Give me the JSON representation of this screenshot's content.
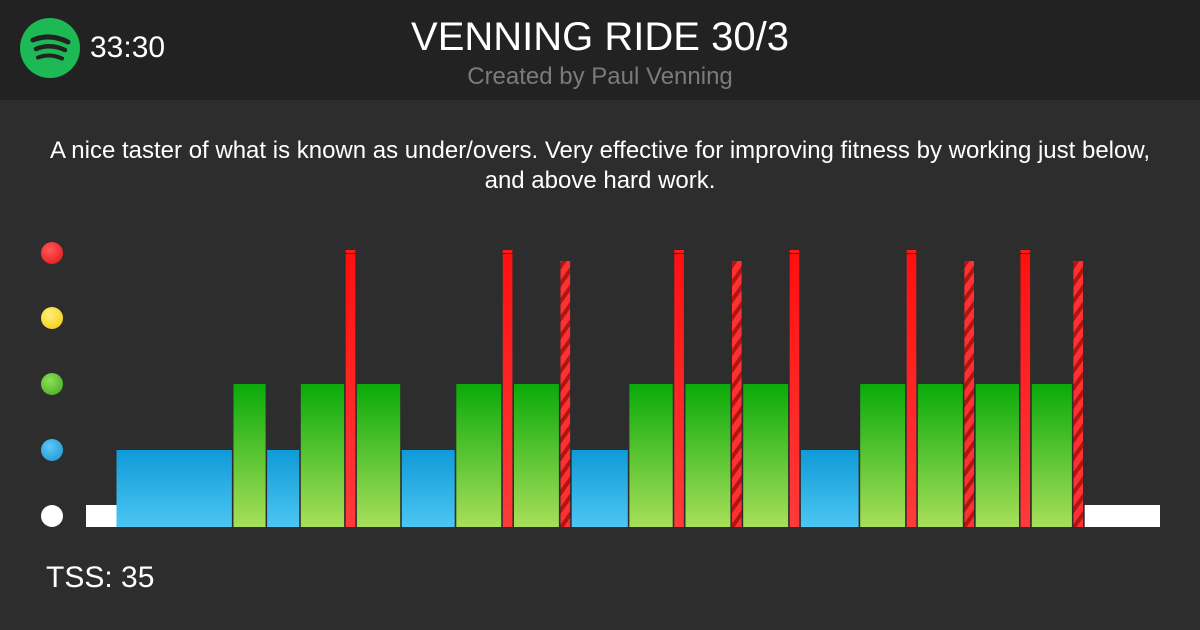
{
  "header": {
    "app_icon": "spotify-icon",
    "duration": "33:30",
    "title": "VENNING RIDE 30/3",
    "subtitle": "Created by Paul Venning"
  },
  "description": "A nice taster of what is known as under/overs. Very effective for improving fitness by working just below, and above hard work.",
  "zones": [
    {
      "name": "zone-5",
      "color": "#ff2a2a"
    },
    {
      "name": "zone-4",
      "color": "#ffe033"
    },
    {
      "name": "zone-3",
      "color": "#5cc02b"
    },
    {
      "name": "zone-2",
      "color": "#2aa6e0"
    },
    {
      "name": "zone-1",
      "color": "#ffffff"
    }
  ],
  "tss_label": "TSS: 35",
  "chart_data": {
    "type": "bar",
    "levels": {
      "white": 1,
      "blue": 2,
      "green": 3,
      "red": 4
    },
    "intervals": [
      {
        "start": 0.0,
        "duration": 0.95,
        "zone": "white"
      },
      {
        "start": 0.95,
        "duration": 3.6,
        "zone": "blue"
      },
      {
        "start": 4.6,
        "duration": 1.0,
        "zone": "green"
      },
      {
        "start": 5.65,
        "duration": 1.0,
        "zone": "blue"
      },
      {
        "start": 6.7,
        "duration": 1.35,
        "zone": "green"
      },
      {
        "start": 8.1,
        "duration": 0.3,
        "zone": "red"
      },
      {
        "start": 8.45,
        "duration": 1.35,
        "zone": "green"
      },
      {
        "start": 9.85,
        "duration": 1.65,
        "zone": "blue"
      },
      {
        "start": 11.55,
        "duration": 1.4,
        "zone": "green"
      },
      {
        "start": 13.0,
        "duration": 0.3,
        "zone": "red"
      },
      {
        "start": 13.35,
        "duration": 1.4,
        "zone": "green"
      },
      {
        "start": 14.8,
        "duration": 0.3,
        "zone": "red",
        "striped": true
      },
      {
        "start": 15.15,
        "duration": 1.75,
        "zone": "blue"
      },
      {
        "start": 16.95,
        "duration": 1.35,
        "zone": "green"
      },
      {
        "start": 18.35,
        "duration": 0.3,
        "zone": "red"
      },
      {
        "start": 18.7,
        "duration": 1.4,
        "zone": "green"
      },
      {
        "start": 20.15,
        "duration": 0.3,
        "zone": "red",
        "striped": true
      },
      {
        "start": 20.5,
        "duration": 1.4,
        "zone": "green"
      },
      {
        "start": 21.95,
        "duration": 0.3,
        "zone": "red"
      },
      {
        "start": 22.3,
        "duration": 1.8,
        "zone": "blue"
      },
      {
        "start": 24.15,
        "duration": 1.4,
        "zone": "green"
      },
      {
        "start": 25.6,
        "duration": 0.3,
        "zone": "red"
      },
      {
        "start": 25.95,
        "duration": 1.4,
        "zone": "green"
      },
      {
        "start": 27.4,
        "duration": 0.3,
        "zone": "red",
        "striped": true
      },
      {
        "start": 27.75,
        "duration": 1.35,
        "zone": "green"
      },
      {
        "start": 29.15,
        "duration": 0.3,
        "zone": "red"
      },
      {
        "start": 29.5,
        "duration": 1.25,
        "zone": "green"
      },
      {
        "start": 30.8,
        "duration": 0.3,
        "zone": "red",
        "striped": true
      },
      {
        "start": 31.15,
        "duration": 2.35,
        "zone": "white"
      }
    ],
    "x_range": [
      0,
      33.5
    ],
    "y_range": [
      0,
      4
    ]
  }
}
